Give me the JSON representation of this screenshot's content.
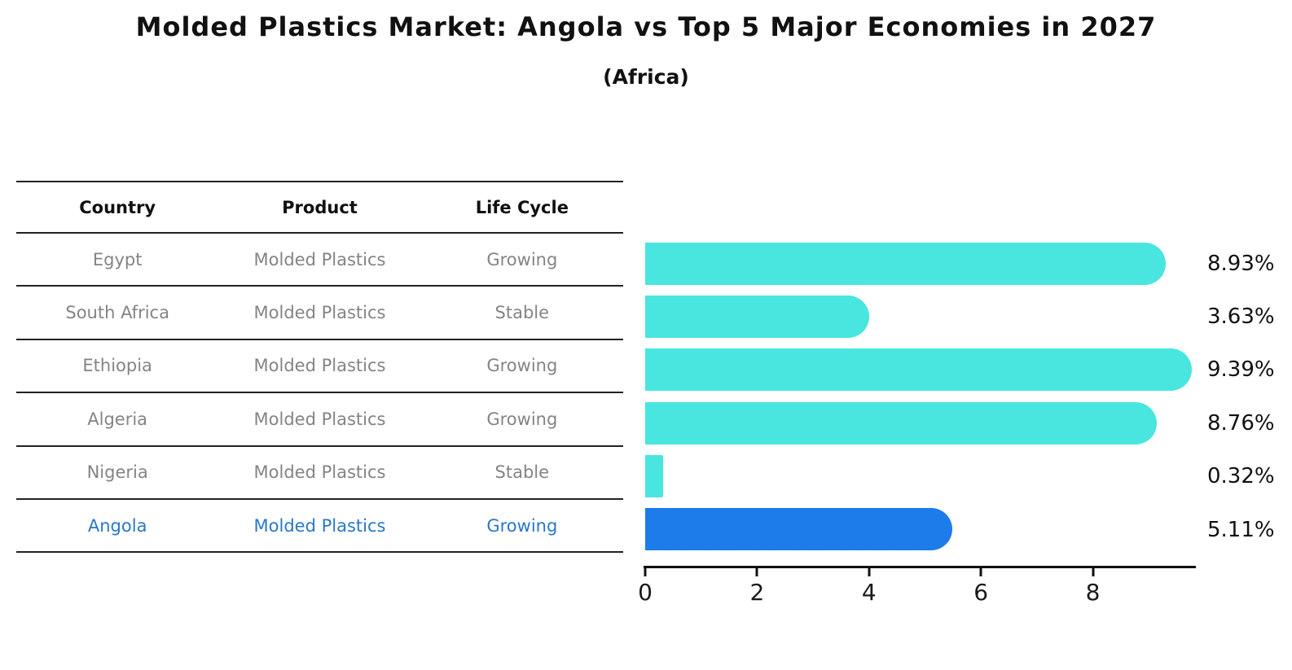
{
  "header": {
    "title": "Molded Plastics Market: Angola vs Top 5 Major Economies in 2027",
    "subtitle": "(Africa)"
  },
  "table": {
    "headers": [
      "Country",
      "Product",
      "Life Cycle"
    ],
    "rows": [
      {
        "country": "Egypt",
        "product": "Molded Plastics",
        "life_cycle": "Growing",
        "highlight": false
      },
      {
        "country": "South Africa",
        "product": "Molded Plastics",
        "life_cycle": "Stable",
        "highlight": false
      },
      {
        "country": "Ethiopia",
        "product": "Molded Plastics",
        "life_cycle": "Growing",
        "highlight": false
      },
      {
        "country": "Algeria",
        "product": "Molded Plastics",
        "life_cycle": "Growing",
        "highlight": false
      },
      {
        "country": "Nigeria",
        "product": "Molded Plastics",
        "life_cycle": "Stable",
        "highlight": false
      },
      {
        "country": "Angola",
        "product": "Molded Plastics",
        "life_cycle": "Growing",
        "highlight": true
      }
    ]
  },
  "chart_data": {
    "type": "bar",
    "orientation": "horizontal",
    "title": "Molded Plastics Market: Angola vs Top 5 Major Economies in 2027 (Africa)",
    "categories": [
      "Egypt",
      "South Africa",
      "Ethiopia",
      "Algeria",
      "Nigeria",
      "Angola"
    ],
    "values": [
      8.93,
      3.63,
      9.39,
      8.76,
      0.32,
      5.11
    ],
    "value_labels": [
      "8.93%",
      "3.63%",
      "9.39%",
      "8.76%",
      "0.32%",
      "5.11%"
    ],
    "x_ticks": [
      0,
      2,
      4,
      6,
      8
    ],
    "xlim": [
      0,
      9.84
    ],
    "grid": false,
    "legend": "none",
    "bar_color": "#48e6df",
    "highlight_index": 5,
    "highlight_color": "#1d7ce9",
    "highlight_text_color": "#2878c8"
  }
}
